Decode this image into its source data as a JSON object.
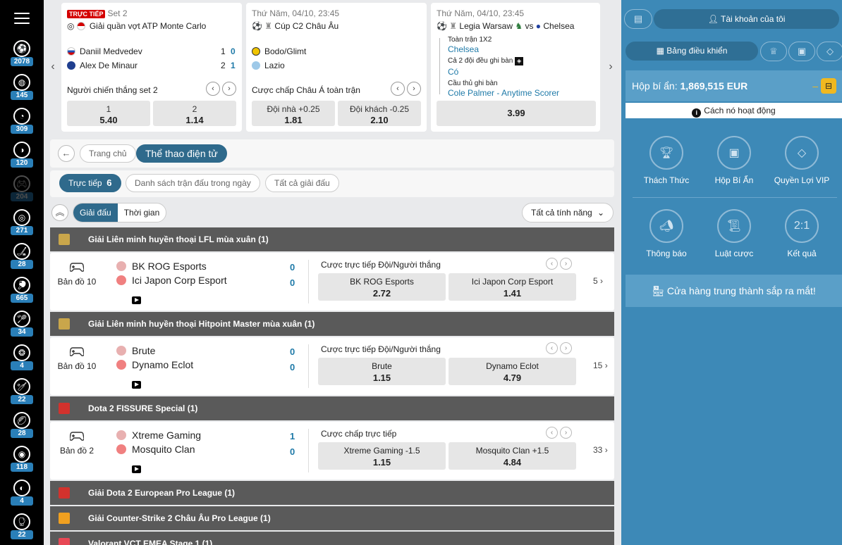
{
  "rail": {
    "sports": [
      {
        "icon": "soccer-ball-icon",
        "count": "2078"
      },
      {
        "icon": "basketball-icon",
        "count": "145"
      },
      {
        "icon": "tennis-ball-icon",
        "count": "309"
      },
      {
        "icon": "baseball-icon",
        "count": "120"
      },
      {
        "icon": "esports-icon",
        "count": "204"
      },
      {
        "icon": "volleyball-icon",
        "count": "271"
      },
      {
        "icon": "ice-hockey-icon",
        "count": "28"
      },
      {
        "icon": "table-tennis-icon",
        "count": "665"
      },
      {
        "icon": "badminton-icon",
        "count": "34"
      },
      {
        "icon": "snooker-icon",
        "count": "4"
      },
      {
        "icon": "cricket-icon",
        "count": "22"
      },
      {
        "icon": "rugby-icon",
        "count": "28"
      },
      {
        "icon": "handball-icon",
        "count": "118"
      },
      {
        "icon": "water-polo-icon",
        "count": "4"
      },
      {
        "icon": "boxing-icon",
        "count": "22"
      }
    ]
  },
  "carousel": {
    "cards": [
      {
        "live_badge": "TRỰC TIẾP",
        "status": "Set 2",
        "competition": "Giải quần vợt ATP Monte Carlo",
        "home": "Daniil Medvedev",
        "home_sets": "1",
        "home_games": "0",
        "away": "Alex De Minaur",
        "away_sets": "2",
        "away_games": "1",
        "market": "Người chiến thắng set 2",
        "odds": [
          {
            "label": "1",
            "value": "5.40"
          },
          {
            "label": "2",
            "value": "1.14"
          }
        ]
      },
      {
        "datetime": "Thứ Năm, 04/10, 23:45",
        "competition": "Cúp C2 Châu Âu",
        "home": "Bodo/Glimt",
        "away": "Lazio",
        "market": "Cược chấp Châu Á toàn trận",
        "odds": [
          {
            "label": "Đội nhà +0.25",
            "value": "1.81"
          },
          {
            "label": "Đội khách -0.25",
            "value": "2.10"
          }
        ]
      },
      {
        "datetime": "Thứ Năm, 04/10, 23:45",
        "home": "Legia Warsaw",
        "vs": "vs",
        "away": "Chelsea",
        "legs": [
          {
            "title": "Toàn trận 1X2",
            "pick": "Chelsea"
          },
          {
            "title": "Cả 2 đội đều ghi bàn",
            "pick": "Có"
          },
          {
            "title": "Cầu thủ ghi bàn",
            "pick": "Cole Palmer - Anytime Scorer"
          }
        ],
        "odds": "3.99"
      }
    ]
  },
  "breadcrumb": {
    "home": "Trang chủ",
    "current": "Thể thao điện tử"
  },
  "tabs": {
    "live": "Trực tiếp",
    "live_count": "6",
    "today": "Danh sách trận đấu trong ngày",
    "all": "Tất cả giải đấu"
  },
  "view": {
    "league": "Giải đấu",
    "time": "Thời gian",
    "features": "Tất cả tính năng"
  },
  "leagues": [
    {
      "name": "Giải Liên minh huyền thoại LFL mùa xuân (1)",
      "icon": "lol-icon",
      "color": "#c9a64b",
      "event": {
        "map": "Bản đồ 10",
        "home": "BK ROG Esports",
        "away": "Ici Japon Corp Esport",
        "home_score": "0",
        "away_score": "0",
        "market": "Cược trực tiếp Đội/Người thắng",
        "odds": [
          {
            "label": "BK ROG Esports",
            "value": "2.72"
          },
          {
            "label": "Ici Japon Corp Esport",
            "value": "1.41"
          }
        ],
        "more": "5"
      }
    },
    {
      "name": "Giải Liên minh huyền thoại Hitpoint Master mùa xuân (1)",
      "icon": "lol-icon",
      "color": "#c9a64b",
      "event": {
        "map": "Bản đồ 10",
        "home": "Brute",
        "away": "Dynamo Eclot",
        "home_score": "0",
        "away_score": "0",
        "market": "Cược trực tiếp Đội/Người thắng",
        "odds": [
          {
            "label": "Brute",
            "value": "1.15"
          },
          {
            "label": "Dynamo Eclot",
            "value": "4.79"
          }
        ],
        "more": "15"
      }
    },
    {
      "name": "Dota 2 FISSURE Special (1)",
      "icon": "dota2-icon",
      "color": "#d2322d",
      "event": {
        "map": "Bản đồ 2",
        "home": "Xtreme Gaming",
        "away": "Mosquito Clan",
        "home_score": "1",
        "away_score": "0",
        "market": "Cược chấp trực tiếp",
        "odds": [
          {
            "label": "Xtreme Gaming -1.5",
            "value": "1.15"
          },
          {
            "label": "Mosquito Clan +1.5",
            "value": "4.84"
          }
        ],
        "more": "33"
      }
    },
    {
      "name": "Giải Dota 2 European Pro League (1)",
      "icon": "dota2-icon",
      "color": "#d2322d"
    },
    {
      "name": "Giải Counter-Strike 2 Châu Âu Pro League (1)",
      "icon": "cs2-icon",
      "color": "#f0a020"
    },
    {
      "name": "Valorant VCT EMEA Stage 1 (1)",
      "icon": "valorant-icon",
      "color": "#e84855"
    }
  ],
  "panel": {
    "account": "Tài khoản của tôi",
    "dashboard": "Bảng điều khiển",
    "mystery_label": "Hộp bí ẩn:",
    "mystery_value": "1,869,515 EUR",
    "how": "Cách nó hoạt động",
    "items": [
      {
        "icon": "trophy-icon",
        "label": "Thách Thức"
      },
      {
        "icon": "mystery-box-icon",
        "label": "Hộp Bí Ẩn"
      },
      {
        "icon": "diamond-icon",
        "label": "Quyền Lợi VIP"
      },
      {
        "icon": "megaphone-icon",
        "label": "Thông báo"
      },
      {
        "icon": "scroll-icon",
        "label": "Luật cược"
      },
      {
        "icon": "results-icon",
        "label": "Kết quả",
        "glyph": "2:1"
      }
    ],
    "shop": "Cửa hàng trung thành sắp ra mắt!"
  }
}
